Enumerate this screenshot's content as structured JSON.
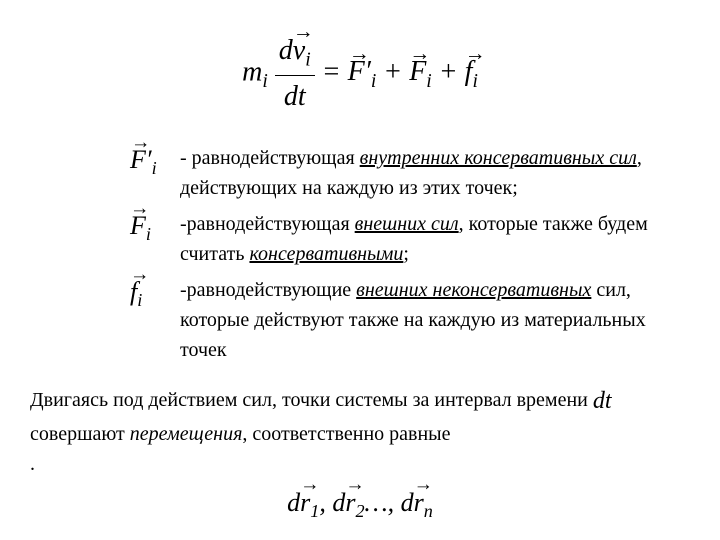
{
  "main_equation": {
    "lhs_m": "m",
    "lhs_sub": "i",
    "frac_num_d": "d",
    "frac_num_v": "v",
    "frac_num_sub": "i",
    "frac_den": "dt",
    "eq": " = ",
    "r1": "F′",
    "r1_sub": "i",
    "plus1": "+",
    "r2": "F",
    "r2_sub": "i",
    "plus2": " + ",
    "r3": "f",
    "r3_sub": "i"
  },
  "defs": [
    {
      "sym": "F′",
      "sym_sub": "i",
      "text_parts": [
        {
          "t": " - равнодействующая "
        },
        {
          "t": "внутренних консервативных сил",
          "u": true,
          "i": true
        },
        {
          "t": ", действующих на каждую из этих точек;"
        }
      ]
    },
    {
      "sym": "F",
      "sym_sub": "i",
      "text_parts": [
        {
          "t": " -равнодействующая "
        },
        {
          "t": "внешних сил",
          "u": true,
          "i": true
        },
        {
          "t": ", которые также будем считать "
        },
        {
          "t": "консервативными",
          "u": true,
          "i": true
        },
        {
          "t": ";"
        }
      ]
    },
    {
      "sym": "f",
      "sym_sub": "i",
      "text_parts": [
        {
          "t": " -равнодействующие "
        },
        {
          "t": "внешних  неконсервативных",
          "u": true,
          "i": true
        },
        {
          "t": " сил, которые действуют также на каждую из материальных точек"
        }
      ]
    }
  ],
  "para": {
    "p1": "Двигаясь под действием сил, точки системы за интервал времени ",
    "dt": "dt",
    "p2": "  совершают ",
    "p3": "перемещения",
    "p4": ", соответственно равные"
  },
  "dot": ".",
  "bottom": {
    "d1": "d",
    "r1": "r",
    "s1": "1",
    "c1": ",",
    "d2": "d",
    "r2": "r",
    "s2": "2",
    "dots": "…,",
    "dn": "d",
    "rn": "r",
    "sn": "n"
  }
}
